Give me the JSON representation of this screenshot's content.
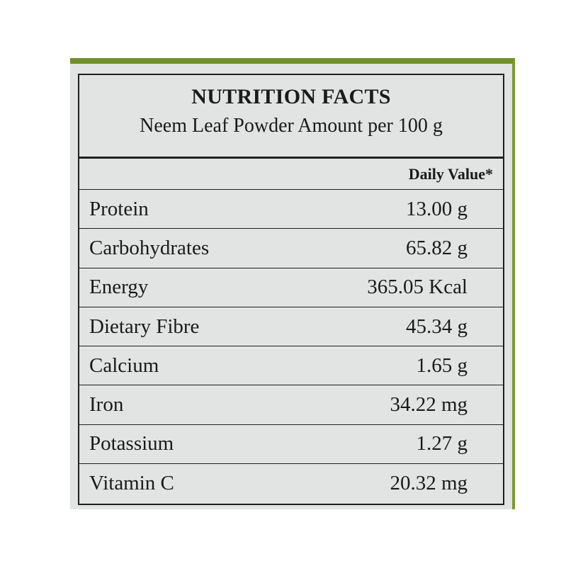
{
  "label": {
    "title": "NUTRITION FACTS",
    "subtitle": "Neem Leaf Powder Amount per 100 g",
    "daily_value_header": "Daily Value*",
    "rows": [
      {
        "nutrient": "Protein",
        "value": "13.00 g"
      },
      {
        "nutrient": "Carbohydrates",
        "value": "65.82 g"
      },
      {
        "nutrient": "Energy",
        "value": "365.05 Kcal"
      },
      {
        "nutrient": "Dietary Fibre",
        "value": "45.34 g"
      },
      {
        "nutrient": "Calcium",
        "value": "1.65 g"
      },
      {
        "nutrient": "Iron",
        "value": "34.22 mg"
      },
      {
        "nutrient": "Potassium",
        "value": "1.27 g"
      },
      {
        "nutrient": "Vitamin C",
        "value": "20.32 mg"
      }
    ]
  },
  "colors": {
    "panel": "#e2e3e3",
    "accent_green": "#6f8f2a"
  }
}
